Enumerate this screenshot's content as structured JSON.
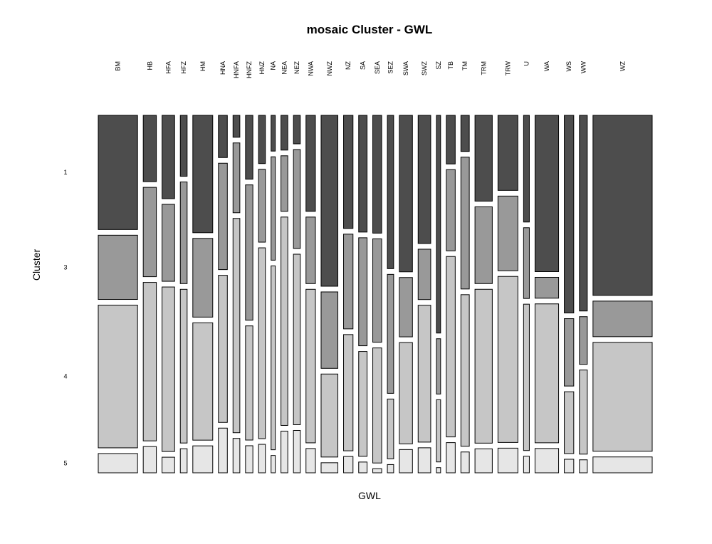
{
  "chart_data": {
    "type": "mosaic",
    "title": "mosaic Cluster - GWL",
    "xlabel": "GWL",
    "ylabel": "Cluster",
    "y_tick_labels": [
      "1",
      "3",
      "4",
      "5"
    ],
    "clusters": [
      "1",
      "3",
      "4",
      "5"
    ],
    "cluster_colors": [
      "#4d4d4d",
      "#999999",
      "#c6c6c6",
      "#e6e6e6"
    ],
    "categories": [
      "BM",
      "HB",
      "HFA",
      "HFZ",
      "HM",
      "HNA",
      "HNFA",
      "HNFZ",
      "HNZ",
      "NA",
      "NEA",
      "NEZ",
      "NWA",
      "NWZ",
      "NZ",
      "SA",
      "SEA",
      "SEZ",
      "SWA",
      "SWZ",
      "SZ",
      "TB",
      "TM",
      "TRM",
      "TRW",
      "U",
      "WA",
      "WS",
      "WW",
      "WZ"
    ],
    "column_weights": [
      0.075,
      0.025,
      0.024,
      0.013,
      0.038,
      0.017,
      0.013,
      0.014,
      0.013,
      0.008,
      0.013,
      0.013,
      0.018,
      0.032,
      0.018,
      0.016,
      0.017,
      0.012,
      0.025,
      0.024,
      0.008,
      0.017,
      0.016,
      0.033,
      0.038,
      0.011,
      0.045,
      0.018,
      0.015,
      0.113
    ],
    "proportions": [
      [
        0.32,
        0.18,
        0.4,
        0.054
      ],
      [
        0.187,
        0.252,
        0.447,
        0.074
      ],
      [
        0.235,
        0.217,
        0.464,
        0.044
      ],
      [
        0.172,
        0.287,
        0.434,
        0.068
      ],
      [
        0.331,
        0.222,
        0.331,
        0.076
      ],
      [
        0.119,
        0.3,
        0.415,
        0.126
      ],
      [
        0.063,
        0.201,
        0.617,
        0.099
      ],
      [
        0.184,
        0.39,
        0.329,
        0.078
      ],
      [
        0.139,
        0.21,
        0.55,
        0.082
      ],
      [
        0.103,
        0.298,
        0.53,
        0.05
      ],
      [
        0.1,
        0.16,
        0.6,
        0.12
      ],
      [
        0.082,
        0.285,
        0.491,
        0.122
      ],
      [
        0.277,
        0.192,
        0.443,
        0.07
      ],
      [
        0.492,
        0.22,
        0.239,
        0.029
      ],
      [
        0.326,
        0.273,
        0.335,
        0.047
      ],
      [
        0.336,
        0.311,
        0.302,
        0.031
      ],
      [
        0.344,
        0.302,
        0.336,
        0.012
      ],
      [
        0.446,
        0.346,
        0.174,
        0.024
      ],
      [
        0.451,
        0.171,
        0.292,
        0.067
      ],
      [
        0.369,
        0.145,
        0.394,
        0.072
      ],
      [
        0.63,
        0.16,
        0.18,
        0.015
      ],
      [
        0.14,
        0.234,
        0.52,
        0.087
      ],
      [
        0.104,
        0.38,
        0.437,
        0.06
      ],
      [
        0.247,
        0.221,
        0.443,
        0.069
      ],
      [
        0.216,
        0.215,
        0.478,
        0.071
      ],
      [
        0.309,
        0.205,
        0.424,
        0.048
      ],
      [
        0.45,
        0.06,
        0.4,
        0.07
      ],
      [
        0.569,
        0.194,
        0.178,
        0.039
      ],
      [
        0.542,
        0.132,
        0.233,
        0.036
      ],
      [
        0.511,
        0.101,
        0.309,
        0.045
      ]
    ]
  }
}
